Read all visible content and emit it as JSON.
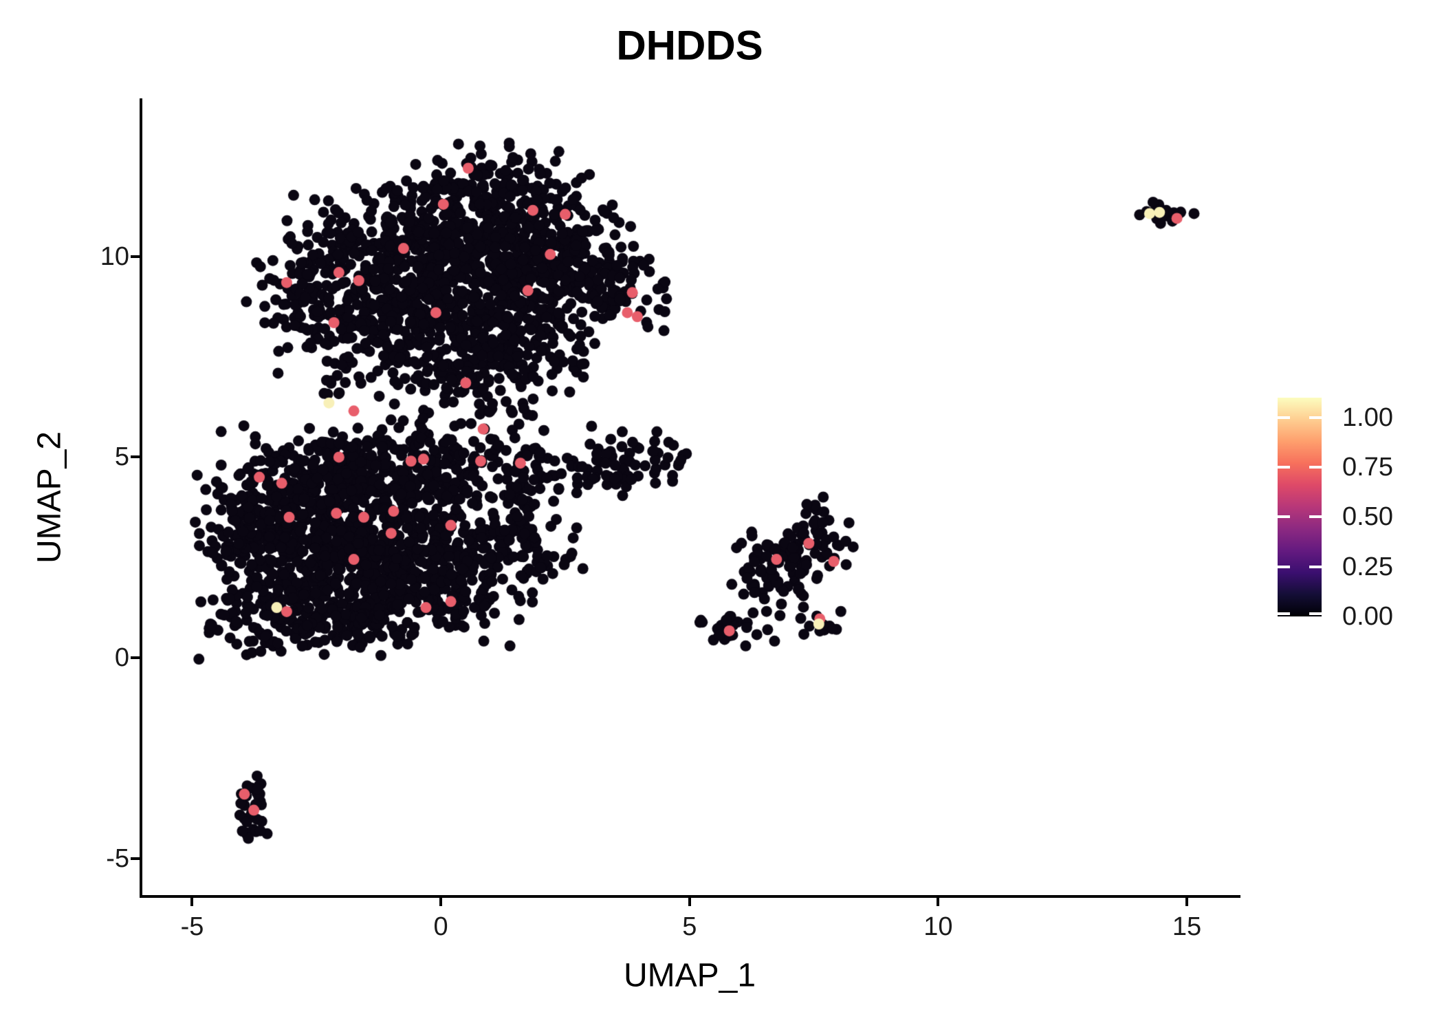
{
  "title": "DHDDS",
  "axes": {
    "x": {
      "label": "UMAP_1",
      "ticks": [
        -5,
        0,
        5,
        10,
        15
      ],
      "tick_labels": [
        "-5",
        "0",
        "5",
        "10",
        "15"
      ]
    },
    "y": {
      "label": "UMAP_2",
      "ticks": [
        -5,
        0,
        5,
        10
      ],
      "tick_labels": [
        "-5",
        "0",
        "5",
        "10"
      ]
    }
  },
  "legend": {
    "tick_labels": [
      "1.00",
      "0.75",
      "0.50",
      "0.25",
      "0.00"
    ],
    "tick_values": [
      1.0,
      0.75,
      0.5,
      0.25,
      0.0
    ],
    "scale_range": [
      0,
      1.1
    ],
    "colormap": "magma",
    "gradient_stops": [
      "#000004",
      "#140e36",
      "#3b0f70",
      "#641a80",
      "#8c2981",
      "#b73779",
      "#de4968",
      "#f7705c",
      "#fe9f6d",
      "#fece91",
      "#fcfdbf"
    ]
  },
  "chart_data": {
    "type": "scatter",
    "title": "DHDDS",
    "xlabel": "UMAP_1",
    "ylabel": "UMAP_2",
    "xlim": [
      -6.03,
      16.05
    ],
    "ylim": [
      -5.95,
      13.94
    ],
    "grid": false,
    "legend_position": "right",
    "point_radius_px": 8,
    "colors": {
      "zero": "#0a0612",
      "mid": "#e85e6b",
      "high": "#f8f0b8"
    },
    "seed": 42,
    "clusters": [
      {
        "name": "top-main",
        "blobs": [
          [
            1.0,
            11.9,
            0.75,
            0.45,
            70
          ],
          [
            0.2,
            11.2,
            1.1,
            0.55,
            130
          ],
          [
            1.6,
            10.7,
            1.0,
            0.6,
            130
          ],
          [
            -1.1,
            10.2,
            1.1,
            0.65,
            140
          ],
          [
            0.5,
            10.0,
            1.2,
            0.7,
            170
          ],
          [
            2.4,
            9.9,
            0.9,
            0.65,
            120
          ],
          [
            -2.3,
            9.4,
            0.7,
            0.6,
            90
          ],
          [
            3.3,
            9.2,
            0.6,
            0.55,
            80
          ],
          [
            -0.4,
            9.0,
            1.2,
            0.7,
            160
          ],
          [
            1.3,
            8.8,
            1.0,
            0.65,
            130
          ],
          [
            -1.7,
            8.3,
            0.8,
            0.55,
            90
          ],
          [
            0.2,
            8.0,
            1.1,
            0.6,
            120
          ],
          [
            1.6,
            7.8,
            0.7,
            0.5,
            70
          ],
          [
            -0.3,
            7.2,
            0.8,
            0.45,
            60
          ],
          [
            0.9,
            6.9,
            0.6,
            0.4,
            35
          ],
          [
            1.5,
            6.2,
            0.5,
            0.35,
            15
          ],
          [
            -2.0,
            6.9,
            0.4,
            0.3,
            12
          ]
        ]
      },
      {
        "name": "bottom-left-main",
        "blobs": [
          [
            -2.6,
            4.4,
            1.0,
            0.6,
            150
          ],
          [
            -1.2,
            4.7,
            1.1,
            0.55,
            150
          ],
          [
            0.3,
            4.8,
            0.9,
            0.45,
            80
          ],
          [
            1.6,
            4.7,
            0.7,
            0.4,
            50
          ],
          [
            -3.2,
            3.4,
            0.8,
            0.75,
            150
          ],
          [
            -1.8,
            3.3,
            1.1,
            0.85,
            210
          ],
          [
            -0.3,
            3.2,
            0.95,
            0.8,
            150
          ],
          [
            0.9,
            2.9,
            0.7,
            0.55,
            80
          ],
          [
            1.9,
            2.6,
            0.5,
            0.4,
            35
          ],
          [
            -2.9,
            2.0,
            0.85,
            0.7,
            140
          ],
          [
            -1.4,
            1.9,
            1.05,
            0.7,
            170
          ],
          [
            0.0,
            1.8,
            0.8,
            0.6,
            100
          ],
          [
            -3.6,
            1.0,
            0.55,
            0.45,
            60
          ],
          [
            -2.5,
            0.8,
            0.7,
            0.4,
            55
          ],
          [
            -1.3,
            0.8,
            0.55,
            0.35,
            35
          ],
          [
            -4.0,
            2.6,
            0.35,
            0.6,
            45
          ],
          [
            0.8,
            1.1,
            0.45,
            0.35,
            20
          ]
        ]
      },
      {
        "name": "mid-small",
        "blobs": [
          [
            3.9,
            4.85,
            0.5,
            0.4,
            55
          ],
          [
            3.15,
            4.8,
            0.35,
            0.3,
            14
          ],
          [
            2.65,
            4.75,
            0.15,
            0.15,
            3
          ]
        ]
      },
      {
        "name": "right-mid",
        "blobs": [
          [
            7.0,
            2.6,
            0.5,
            0.45,
            65
          ],
          [
            7.6,
            3.3,
            0.3,
            0.35,
            22
          ],
          [
            6.5,
            2.05,
            0.4,
            0.3,
            28
          ],
          [
            5.85,
            0.8,
            0.45,
            0.22,
            26
          ],
          [
            7.65,
            0.88,
            0.28,
            0.16,
            14
          ],
          [
            6.6,
            1.5,
            0.3,
            0.2,
            9
          ],
          [
            7.45,
            3.9,
            0.15,
            0.15,
            4
          ]
        ]
      },
      {
        "name": "far-right",
        "blobs": [
          [
            14.5,
            11.05,
            0.28,
            0.14,
            24
          ]
        ]
      },
      {
        "name": "bottom-small",
        "blobs": [
          [
            -3.8,
            -3.9,
            0.16,
            0.4,
            26
          ],
          [
            -3.68,
            -3.35,
            0.12,
            0.2,
            8
          ]
        ]
      }
    ],
    "highlights_mid": [
      [
        0.55,
        12.2
      ],
      [
        0.05,
        11.3
      ],
      [
        1.85,
        11.15
      ],
      [
        2.5,
        11.05
      ],
      [
        2.2,
        10.05
      ],
      [
        -0.75,
        10.2
      ],
      [
        -2.05,
        9.6
      ],
      [
        -1.65,
        9.4
      ],
      [
        -3.1,
        9.35
      ],
      [
        -2.15,
        8.35
      ],
      [
        3.85,
        9.1
      ],
      [
        3.75,
        8.6
      ],
      [
        3.95,
        8.5
      ],
      [
        1.75,
        9.15
      ],
      [
        -0.1,
        8.6
      ],
      [
        -1.75,
        6.15
      ],
      [
        0.85,
        5.7
      ],
      [
        0.5,
        6.85
      ],
      [
        -3.65,
        4.5
      ],
      [
        -3.2,
        4.35
      ],
      [
        -2.05,
        5.0
      ],
      [
        -0.6,
        4.9
      ],
      [
        -0.35,
        4.95
      ],
      [
        0.8,
        4.9
      ],
      [
        1.6,
        4.85
      ],
      [
        -3.05,
        3.5
      ],
      [
        -2.1,
        3.6
      ],
      [
        -1.55,
        3.5
      ],
      [
        -0.95,
        3.65
      ],
      [
        -1.0,
        3.1
      ],
      [
        0.2,
        3.3
      ],
      [
        -1.75,
        2.45
      ],
      [
        -0.3,
        1.25
      ],
      [
        -3.1,
        1.15
      ],
      [
        0.2,
        1.4
      ],
      [
        6.75,
        2.45
      ],
      [
        7.4,
        2.85
      ],
      [
        7.9,
        2.4
      ],
      [
        5.8,
        0.67
      ],
      [
        7.62,
        0.97
      ],
      [
        14.8,
        10.95
      ],
      [
        -3.95,
        -3.4
      ],
      [
        -3.76,
        -3.8
      ]
    ],
    "highlights_high": [
      [
        -2.25,
        6.35
      ],
      [
        -3.3,
        1.25
      ],
      [
        7.6,
        0.84
      ],
      [
        14.25,
        11.07
      ],
      [
        14.45,
        11.1
      ]
    ]
  }
}
